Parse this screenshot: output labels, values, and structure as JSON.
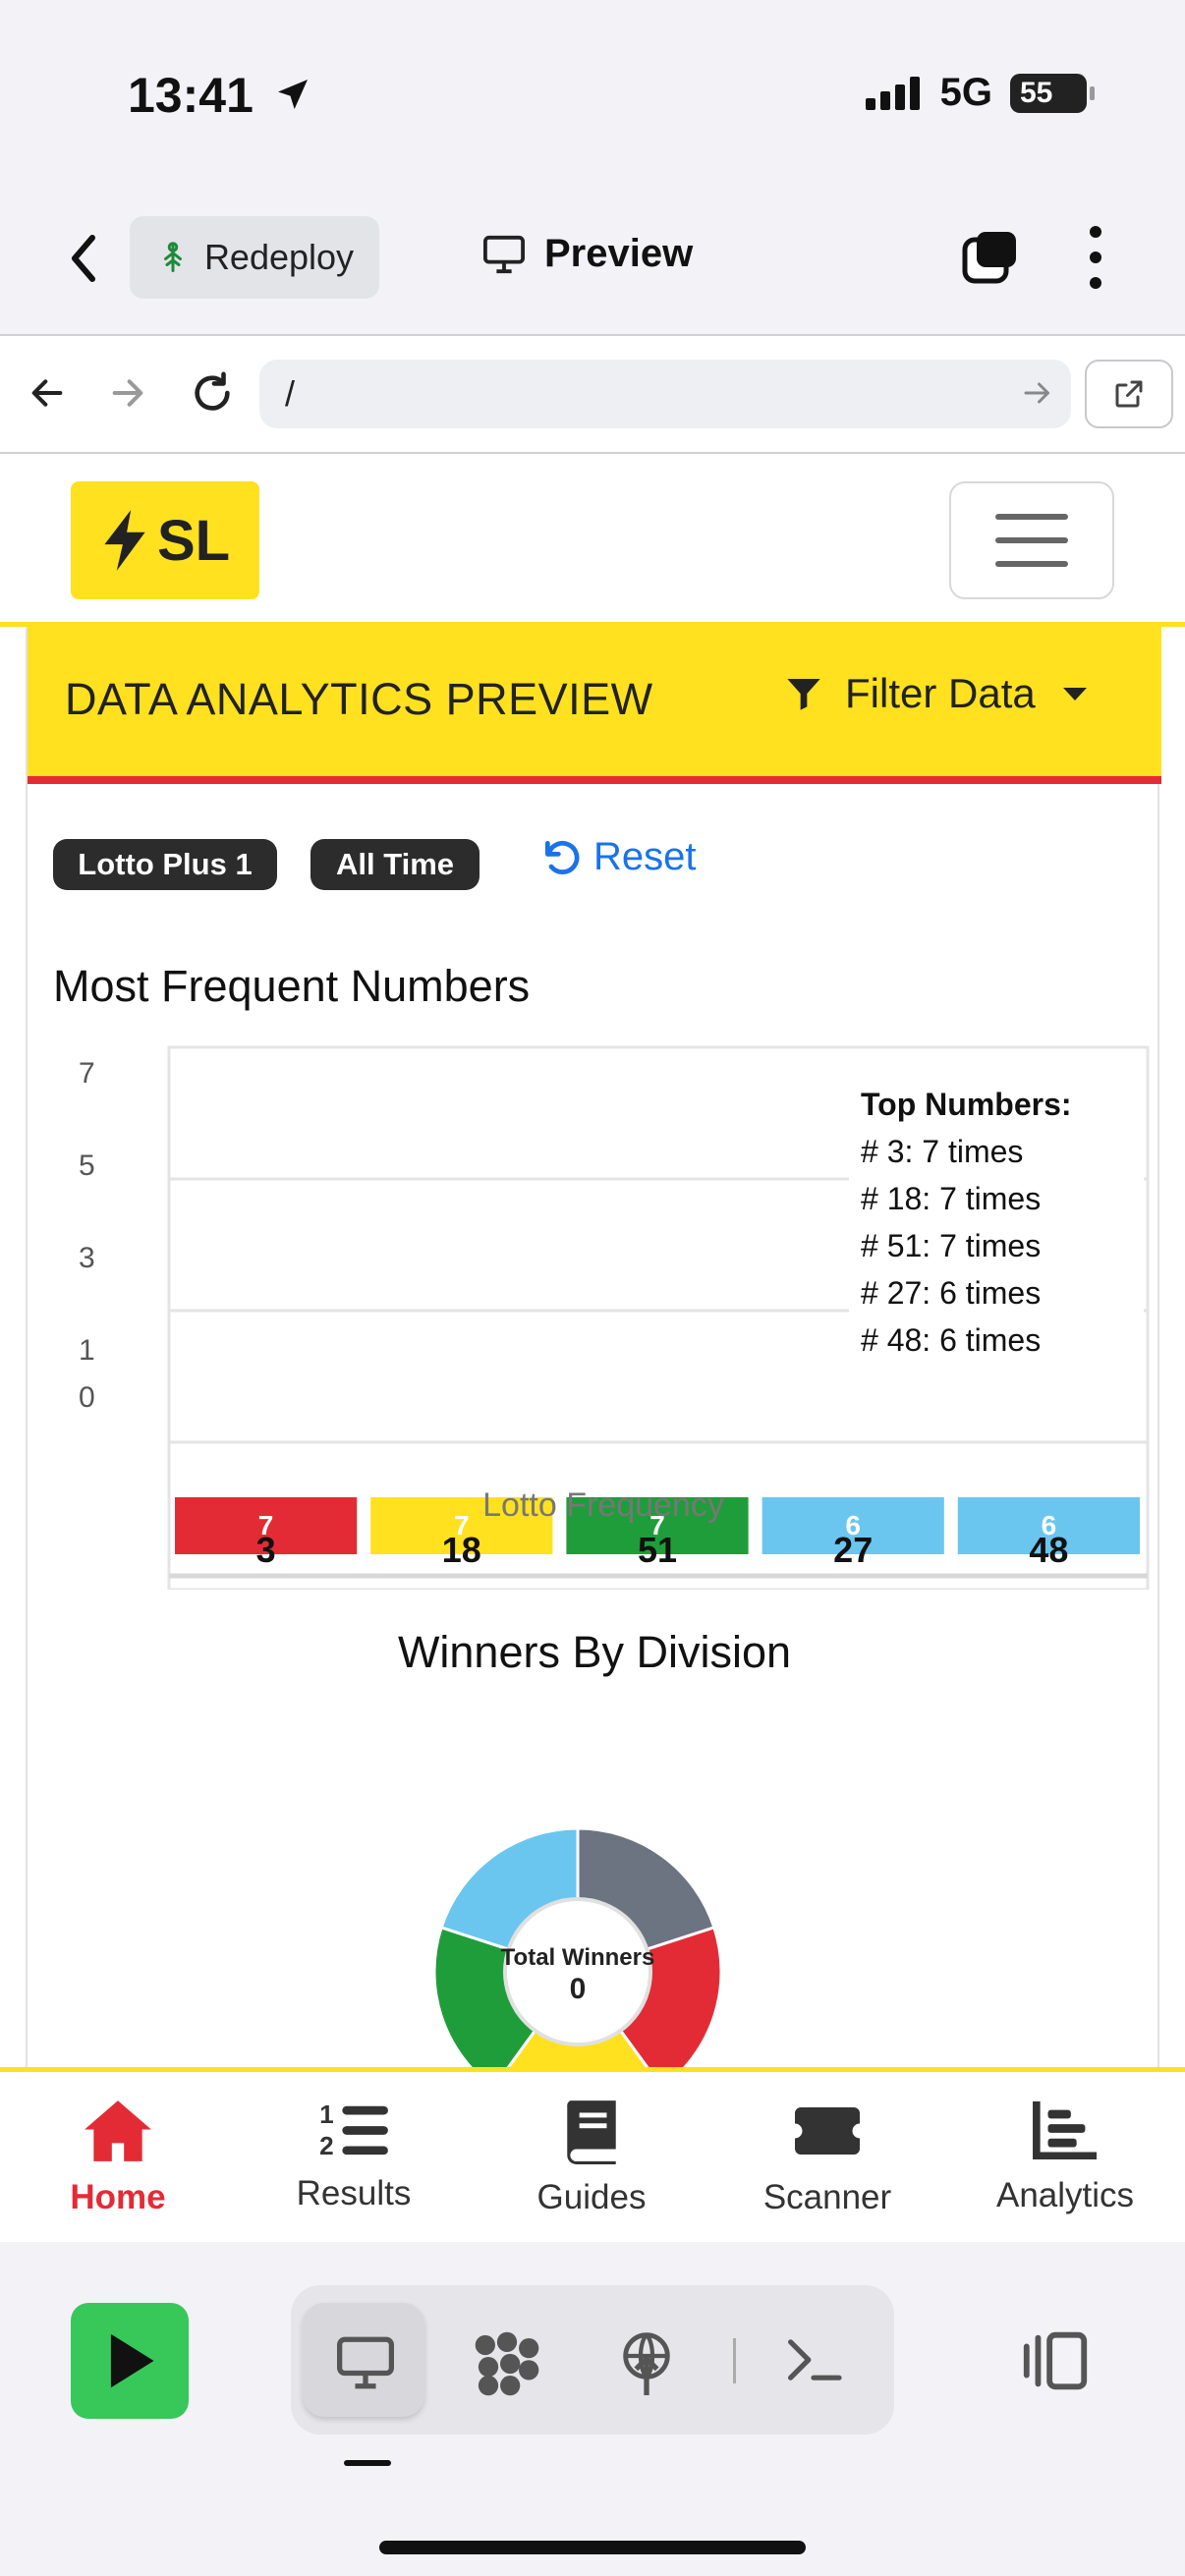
{
  "status_bar": {
    "time": "13:41",
    "network": "5G",
    "battery": "55"
  },
  "replit_top": {
    "redeploy_label": "Redeploy",
    "preview_label": "Preview"
  },
  "address_bar": {
    "url": "/"
  },
  "site": {
    "logo_text": "SL",
    "brand_yellow": "#ffe11f",
    "brand_red": "#e32b36"
  },
  "card": {
    "title": "DATA ANALYTICS PREVIEW",
    "filter_label": "Filter Data",
    "badges": [
      "Lotto Plus 1",
      "All Time"
    ],
    "reset_label": "Reset",
    "frequent_title": "Most Frequent Numbers",
    "winners_title": "Winners By Division",
    "donut_label": "Total Winners",
    "donut_value": "0"
  },
  "top_numbers": {
    "title": "Top Numbers:",
    "items": [
      "# 3: 7 times",
      "# 18: 7 times",
      "# 51: 7 times",
      "# 27: 6 times",
      "# 48: 6 times"
    ]
  },
  "chart_data": [
    {
      "type": "bar",
      "title": "Most Frequent Numbers",
      "xlabel": "Lotto Frequency",
      "categories": [
        "3",
        "18",
        "51",
        "27",
        "48"
      ],
      "values": [
        7,
        7,
        7,
        6,
        6
      ],
      "bar_colors": [
        "#e32b36",
        "#ffe11f",
        "#1f9d3a",
        "#6ac6ee",
        "#6ac6ee"
      ],
      "y_ticks": [
        "7",
        "5",
        "3",
        "1",
        "0"
      ],
      "grid": true
    },
    {
      "type": "pie",
      "title": "Winners By Division",
      "center_label": "Total Winners",
      "center_value": "0",
      "slice_colors": [
        "#6b7480",
        "#e32b36",
        "#ffe11f",
        "#1f9d3a",
        "#6ac6ee"
      ]
    }
  ],
  "tabs": [
    {
      "label": "Home",
      "icon": "home-icon",
      "active": true
    },
    {
      "label": "Results",
      "icon": "list-ordered-icon",
      "active": false
    },
    {
      "label": "Guides",
      "icon": "book-icon",
      "active": false
    },
    {
      "label": "Scanner",
      "icon": "ticket-icon",
      "active": false
    },
    {
      "label": "Analytics",
      "icon": "bar-chart-icon",
      "active": false
    }
  ]
}
